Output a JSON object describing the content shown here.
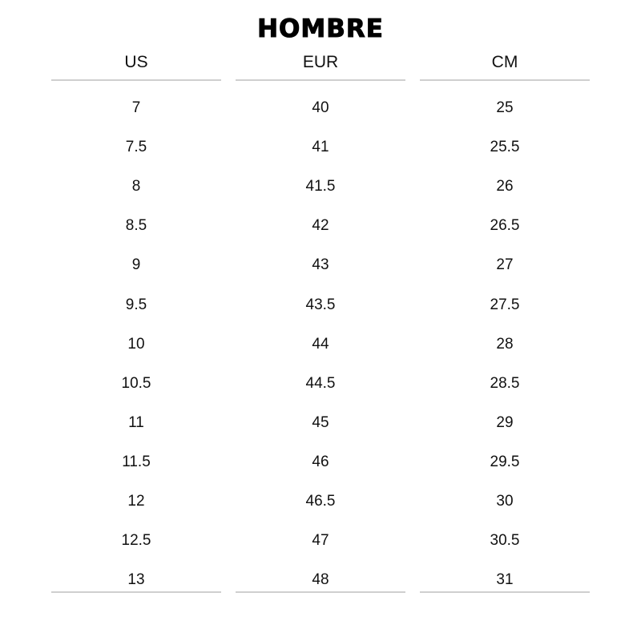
{
  "title": "HOMBRE",
  "columns": [
    {
      "header": "US",
      "values": [
        "7",
        "7.5",
        "8",
        "8.5",
        "9",
        "9.5",
        "10",
        "10.5",
        "11",
        "11.5",
        "12",
        "12.5",
        "13"
      ]
    },
    {
      "header": "EUR",
      "values": [
        "40",
        "41",
        "41.5",
        "42",
        "43",
        "43.5",
        "44",
        "44.5",
        "45",
        "46",
        "46.5",
        "47",
        "48"
      ]
    },
    {
      "header": "CM",
      "values": [
        "25",
        "25.5",
        "26",
        "26.5",
        "27",
        "27.5",
        "28",
        "28.5",
        "29",
        "29.5",
        "30",
        "30.5",
        "31"
      ]
    }
  ]
}
